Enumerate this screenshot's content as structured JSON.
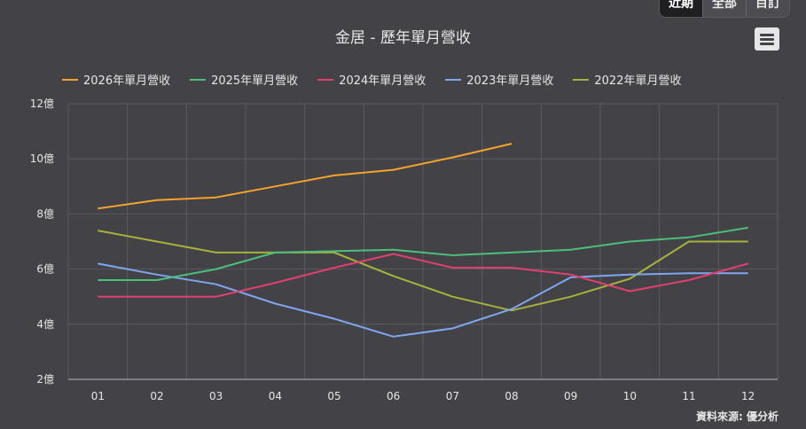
{
  "tabs": [
    {
      "label": "近期",
      "active": true
    },
    {
      "label": "全部",
      "active": false
    },
    {
      "label": "目訂",
      "active": false
    }
  ],
  "menu_icon": "hamburger-menu-icon",
  "credit": "資料來源: 優分析",
  "chart_data": {
    "type": "line",
    "title": "金居 - 歷年單月營收",
    "categories": [
      "01",
      "02",
      "03",
      "04",
      "05",
      "06",
      "07",
      "08",
      "09",
      "10",
      "11",
      "12"
    ],
    "y_ticks": [
      "2億",
      "4億",
      "6億",
      "8億",
      "10億",
      "12億"
    ],
    "ylim": [
      2,
      12
    ],
    "grid": true,
    "legend_position": "top-left",
    "series": [
      {
        "name": "2026年單月營收",
        "color": "#f5a32a",
        "values": [
          8.2,
          8.5,
          8.6,
          9.0,
          9.4,
          9.6,
          10.05,
          10.55,
          null,
          null,
          null,
          null
        ]
      },
      {
        "name": "2025年單月營收",
        "color": "#4cbf7a",
        "values": [
          5.6,
          5.6,
          6.0,
          6.6,
          6.65,
          6.7,
          6.5,
          6.6,
          6.7,
          7.0,
          7.15,
          7.5
        ]
      },
      {
        "name": "2024年單月營收",
        "color": "#e0406f",
        "values": [
          5.0,
          5.0,
          5.0,
          5.5,
          6.05,
          6.55,
          6.05,
          6.05,
          5.8,
          5.2,
          5.6,
          6.2
        ]
      },
      {
        "name": "2023年單月營收",
        "color": "#7fa6ef",
        "values": [
          6.2,
          5.8,
          5.45,
          4.75,
          4.2,
          3.55,
          3.85,
          4.55,
          5.7,
          5.8,
          5.85,
          5.85
        ]
      },
      {
        "name": "2022年單月營收",
        "color": "#a6b33a",
        "values": [
          7.4,
          7.0,
          6.6,
          6.6,
          6.6,
          5.75,
          5.0,
          4.5,
          5.0,
          5.65,
          7.0,
          7.0
        ]
      }
    ]
  }
}
